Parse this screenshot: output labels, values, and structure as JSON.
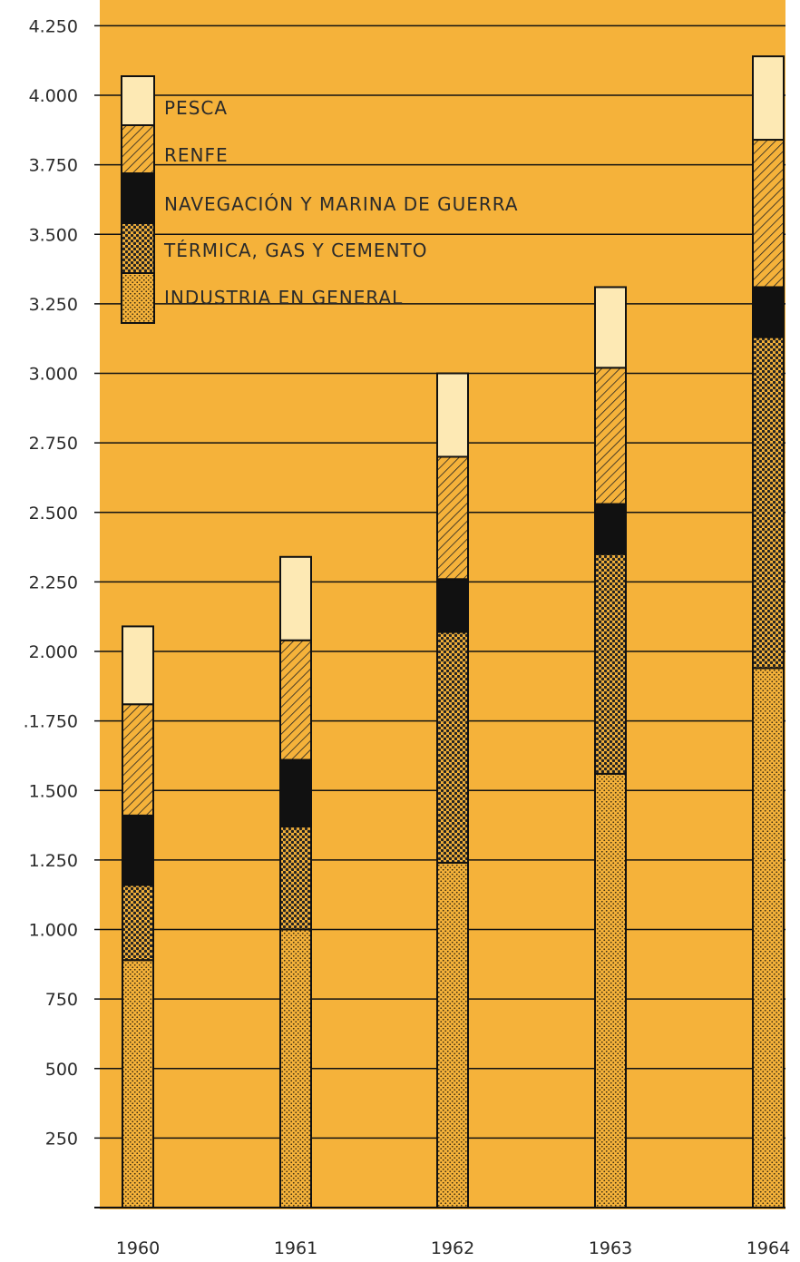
{
  "chart_data": {
    "type": "bar",
    "stacked": true,
    "categories": [
      "1960",
      "1961",
      "1962",
      "1963",
      "1964"
    ],
    "series": [
      {
        "name": "INDUSTRIA EN GENERAL",
        "values": [
          890,
          1000,
          1240,
          1560,
          1940
        ]
      },
      {
        "name": "TÉRMICA, GAS Y CEMENTO",
        "values": [
          270,
          370,
          830,
          790,
          1190
        ]
      },
      {
        "name": "NAVEGACIÓN Y MARINA DE GUERRA",
        "values": [
          250,
          240,
          190,
          180,
          180
        ]
      },
      {
        "name": "RENFE",
        "values": [
          400,
          430,
          440,
          490,
          530
        ]
      },
      {
        "name": "PESCA",
        "values": [
          280,
          300,
          300,
          290,
          300
        ]
      }
    ],
    "yticks": [
      "250",
      "500",
      "750",
      "1.000",
      "1.250",
      "1.500",
      ".1.750",
      "2.000",
      "2.250",
      "2.500",
      "2.750",
      "3.000",
      "3.250",
      "3.500",
      "3.750",
      "4.000",
      "4.250"
    ],
    "ylim": [
      0,
      4250
    ],
    "grid": true,
    "legend_position": "top-left",
    "colors": {
      "background": "#f5b23a",
      "ink": "#111111",
      "light": "#fde9b4"
    }
  }
}
